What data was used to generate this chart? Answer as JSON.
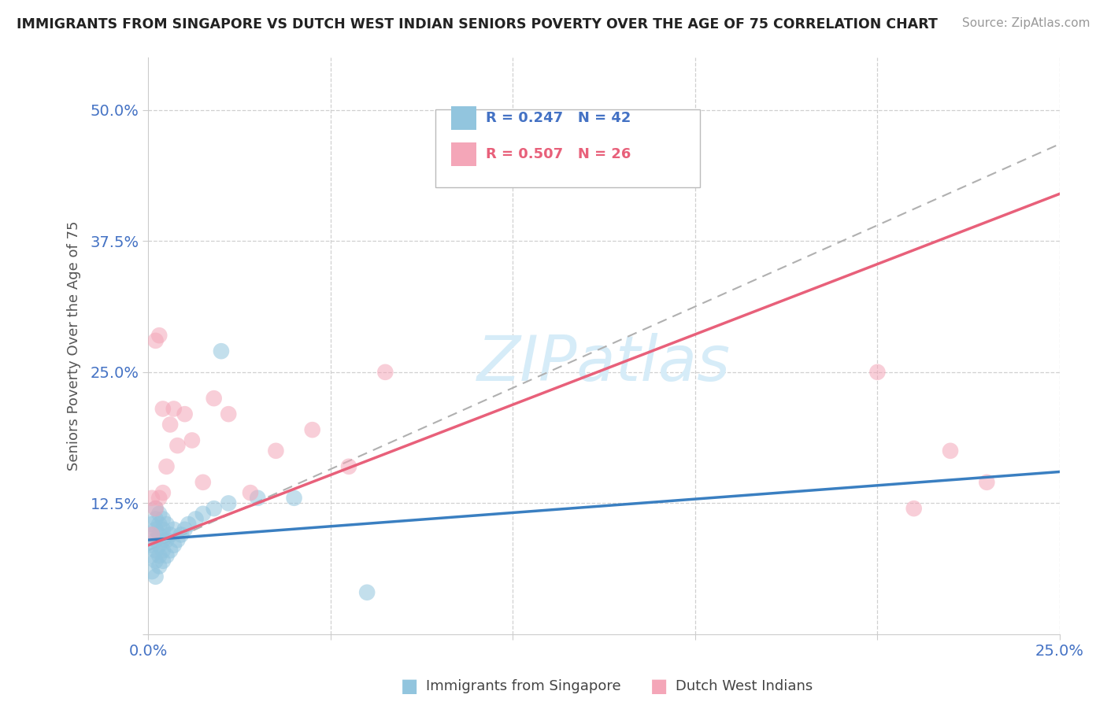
{
  "title": "IMMIGRANTS FROM SINGAPORE VS DUTCH WEST INDIAN SENIORS POVERTY OVER THE AGE OF 75 CORRELATION CHART",
  "source": "Source: ZipAtlas.com",
  "ylabel": "Seniors Poverty Over the Age of 75",
  "xlim": [
    0.0,
    0.25
  ],
  "ylim": [
    0.0,
    0.55
  ],
  "xticks": [
    0.0,
    0.05,
    0.1,
    0.15,
    0.2,
    0.25
  ],
  "yticks": [
    0.0,
    0.125,
    0.25,
    0.375,
    0.5
  ],
  "ytick_labels": [
    "",
    "12.5%",
    "25.0%",
    "37.5%",
    "50.0%"
  ],
  "xtick_labels": [
    "0.0%",
    "",
    "",
    "",
    "",
    "25.0%"
  ],
  "color_blue": "#92c5de",
  "color_pink": "#f4a6b8",
  "color_blue_line": "#3a7fc1",
  "color_pink_line": "#e8607a",
  "color_dashed": "#b0b0b0",
  "watermark_color": "#d6ecf8",
  "sg_x": [
    0.001,
    0.001,
    0.001,
    0.001,
    0.001,
    0.002,
    0.002,
    0.002,
    0.002,
    0.002,
    0.002,
    0.002,
    0.003,
    0.003,
    0.003,
    0.003,
    0.003,
    0.003,
    0.004,
    0.004,
    0.004,
    0.004,
    0.004,
    0.005,
    0.005,
    0.005,
    0.006,
    0.006,
    0.007,
    0.007,
    0.008,
    0.009,
    0.01,
    0.011,
    0.013,
    0.015,
    0.018,
    0.022,
    0.03,
    0.04,
    0.06,
    0.02
  ],
  "sg_y": [
    0.06,
    0.075,
    0.085,
    0.095,
    0.105,
    0.055,
    0.07,
    0.08,
    0.09,
    0.1,
    0.11,
    0.12,
    0.065,
    0.075,
    0.085,
    0.095,
    0.105,
    0.115,
    0.07,
    0.08,
    0.09,
    0.1,
    0.11,
    0.075,
    0.09,
    0.105,
    0.08,
    0.095,
    0.085,
    0.1,
    0.09,
    0.095,
    0.1,
    0.105,
    0.11,
    0.115,
    0.12,
    0.125,
    0.13,
    0.13,
    0.04,
    0.27
  ],
  "dwi_x": [
    0.001,
    0.001,
    0.002,
    0.002,
    0.003,
    0.003,
    0.004,
    0.004,
    0.005,
    0.006,
    0.007,
    0.008,
    0.01,
    0.012,
    0.015,
    0.018,
    0.022,
    0.028,
    0.035,
    0.045,
    0.055,
    0.065,
    0.2,
    0.21,
    0.22,
    0.23
  ],
  "dwi_y": [
    0.095,
    0.13,
    0.12,
    0.28,
    0.285,
    0.13,
    0.135,
    0.215,
    0.16,
    0.2,
    0.215,
    0.18,
    0.21,
    0.185,
    0.145,
    0.225,
    0.21,
    0.135,
    0.175,
    0.195,
    0.16,
    0.25,
    0.25,
    0.12,
    0.175,
    0.145
  ]
}
